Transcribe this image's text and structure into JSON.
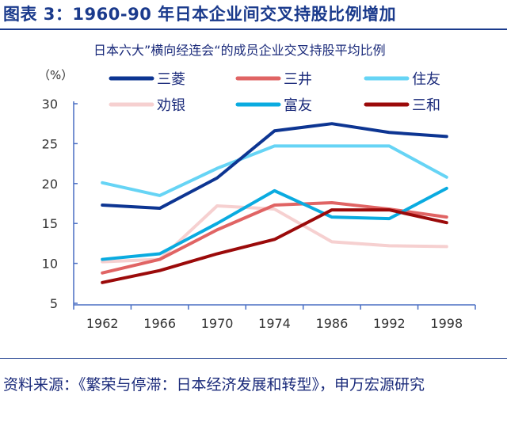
{
  "header": {
    "title": "图表 3：1960-90 年日本企业间交叉持股比例增加"
  },
  "chart_data": {
    "type": "line",
    "title": "日本六大”横向经连会“的成员企业交叉持股平均比例",
    "ylabel": "（%）",
    "xlabel": "",
    "categories": [
      "1962",
      "1966",
      "1970",
      "1974",
      "1986",
      "1992",
      "1998"
    ],
    "ylim": [
      5,
      30
    ],
    "yticks": [
      5,
      10,
      15,
      20,
      25,
      30
    ],
    "legend": "top",
    "series": [
      {
        "name": "三菱",
        "color": "#0d3592",
        "values": [
          17.3,
          16.9,
          20.7,
          26.6,
          27.5,
          26.4,
          25.9
        ]
      },
      {
        "name": "三井",
        "color": "#e06464",
        "values": [
          8.8,
          10.5,
          14.2,
          17.3,
          17.6,
          16.8,
          15.8
        ]
      },
      {
        "name": "住友",
        "color": "#66d4f5",
        "values": [
          20.1,
          18.5,
          21.9,
          24.7,
          24.7,
          24.7,
          20.8
        ]
      },
      {
        "name": "劝银",
        "color": "#f6d0d0",
        "values": [
          10.2,
          10.5,
          17.2,
          16.8,
          12.7,
          12.2,
          12.1
        ]
      },
      {
        "name": "富友",
        "color": "#0aabe0",
        "values": [
          10.5,
          11.2,
          15.0,
          19.1,
          15.8,
          15.6,
          19.4
        ]
      },
      {
        "name": "三和",
        "color": "#9b0a0a",
        "values": [
          7.6,
          9.1,
          11.2,
          13.0,
          16.7,
          16.7,
          15.1
        ]
      }
    ]
  },
  "footer": {
    "source": "资料来源：《繁荣与停滞：日本经济发展和转型》，申万宏源研究"
  }
}
